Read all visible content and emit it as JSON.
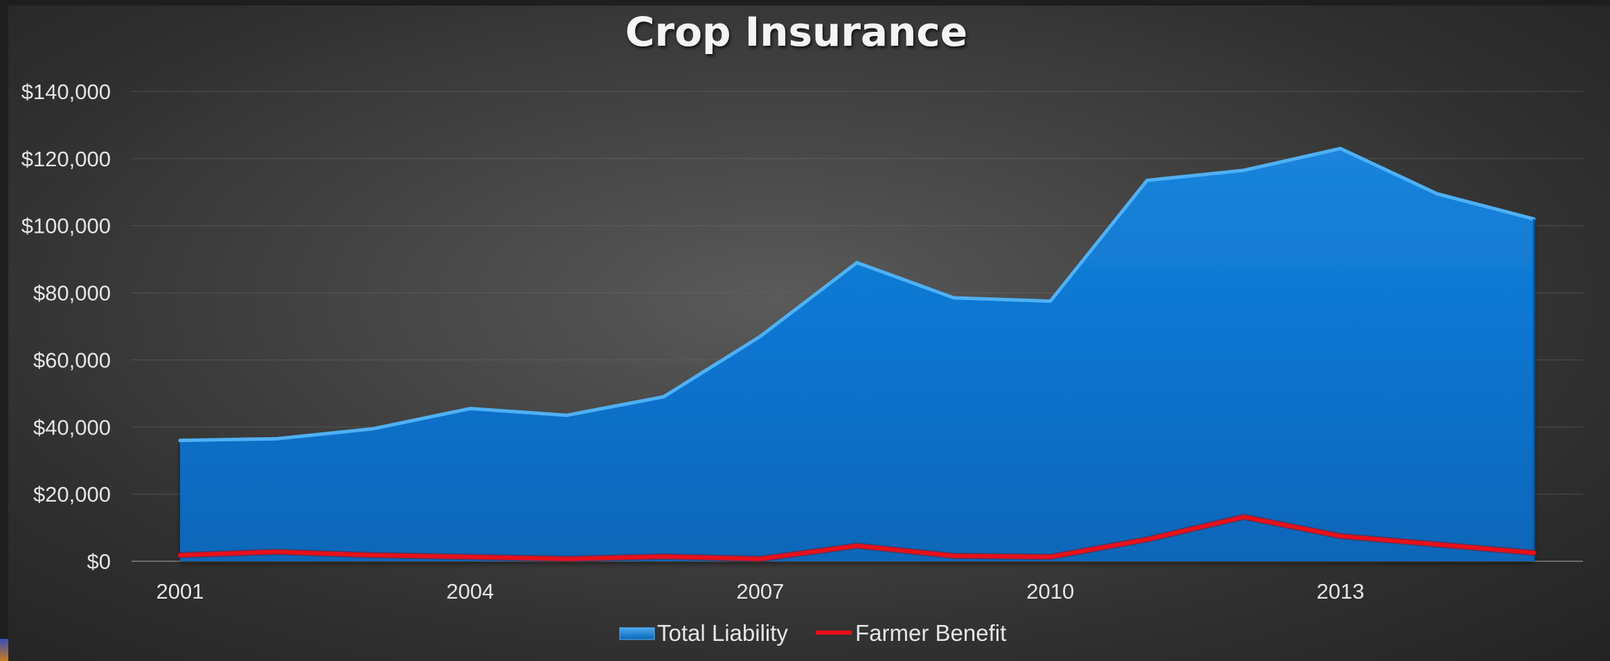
{
  "chart_data": {
    "type": "area",
    "title": "Crop Insurance",
    "x": [
      2001,
      2002,
      2003,
      2004,
      2005,
      2006,
      2007,
      2008,
      2009,
      2010,
      2011,
      2012,
      2013,
      2014,
      2015
    ],
    "x_tick_labels": [
      "2001",
      "2004",
      "2007",
      "2010",
      "2013"
    ],
    "y_tick_labels": [
      "$0",
      "$20,000",
      "$40,000",
      "$60,000",
      "$80,000",
      "$100,000",
      "$120,000",
      "$140,000"
    ],
    "ylim": [
      0,
      140000
    ],
    "grid": true,
    "legend_position": "bottom",
    "series": [
      {
        "name": "Total Liability",
        "type": "area",
        "color": "#0a74d0",
        "values": [
          36000,
          36500,
          39500,
          45500,
          43500,
          49000,
          67000,
          89000,
          78500,
          77500,
          113500,
          116500,
          123000,
          109500,
          102000
        ]
      },
      {
        "name": "Farmer Benefit",
        "type": "line",
        "color": "#e8101a",
        "values": [
          1800,
          2800,
          1800,
          1300,
          700,
          1400,
          700,
          4600,
          1600,
          1300,
          6500,
          13200,
          7500,
          5000,
          2500
        ]
      }
    ]
  }
}
